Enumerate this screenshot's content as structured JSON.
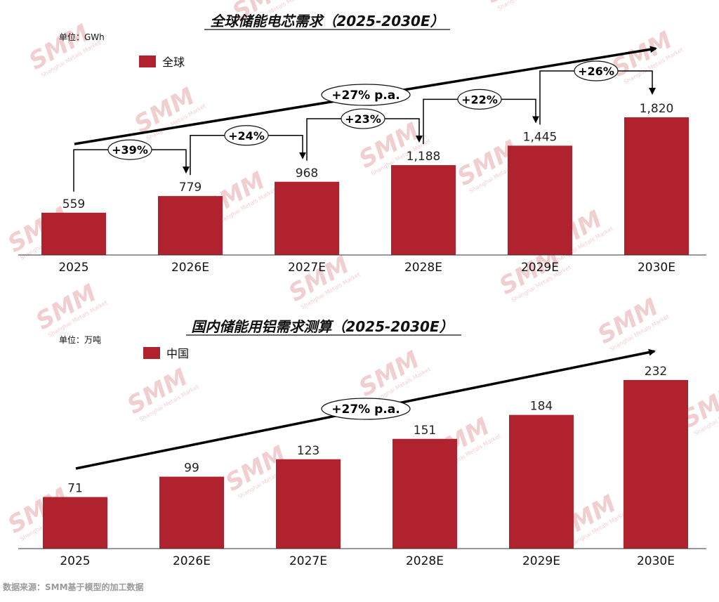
{
  "theme": {
    "bar_color": "#b0222e",
    "watermark_color": "#e7a7aa",
    "text_color": "#111111",
    "source_color": "#9a9a9a"
  },
  "watermark": {
    "brand": "SMM",
    "sub": "Shanghai Metals Market"
  },
  "source": "数据来源：SMM基于模型的加工数据",
  "chart_data": [
    {
      "type": "bar",
      "title": "全球储能电芯需求（2025-2030E）",
      "unit": "单位：GWh",
      "categories": [
        "2025",
        "2026E",
        "2027E",
        "2028E",
        "2029E",
        "2030E"
      ],
      "series": [
        {
          "name": "全球",
          "values": [
            559,
            779,
            968,
            1188,
            1445,
            1820
          ],
          "labels": [
            "559",
            "779",
            "968",
            "1,188",
            "1,445",
            "1,820"
          ]
        }
      ],
      "ylim": [
        0,
        1820
      ],
      "grid": false,
      "legend": "top-left",
      "cagr": "+27% p.a.",
      "growth_labels": [
        "+39%",
        "+24%",
        "+23%",
        "+22%",
        "+26%"
      ]
    },
    {
      "type": "bar",
      "title": "国内储能用铝需求测算（2025-2030E）",
      "unit": "单位：万吨",
      "categories": [
        "2025",
        "2026E",
        "2027E",
        "2028E",
        "2029E",
        "2030E"
      ],
      "series": [
        {
          "name": "中国",
          "values": [
            71,
            99,
            123,
            151,
            184,
            232
          ],
          "labels": [
            "71",
            "99",
            "123",
            "151",
            "184",
            "232"
          ]
        }
      ],
      "ylim": [
        0,
        232
      ],
      "grid": false,
      "legend": "top-left",
      "cagr": "+27% p.a.",
      "growth_labels": []
    }
  ]
}
